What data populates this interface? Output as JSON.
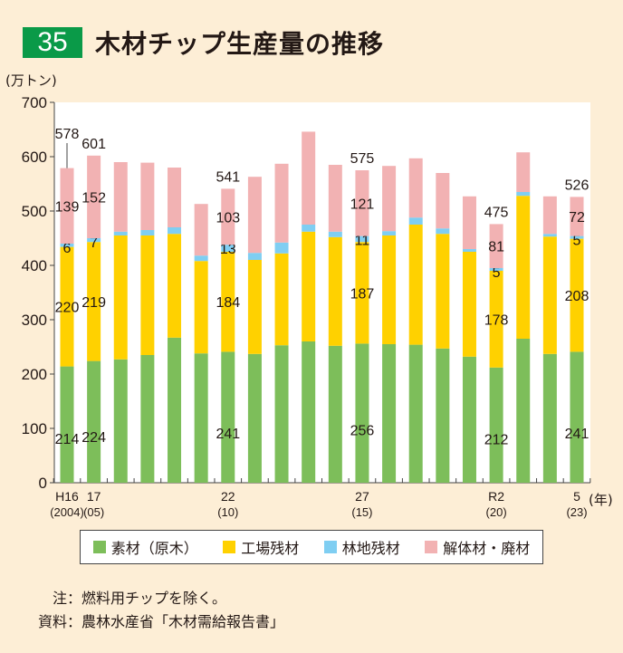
{
  "header": {
    "badge": "35",
    "title": "木材チップ生産量の推移"
  },
  "colors": {
    "green": "#7dbe5a",
    "yellow": "#ffd100",
    "blue": "#7fcef2",
    "pink": "#f2b2b3",
    "badge": "#0a9a48",
    "background": "#fdeed6"
  },
  "chart_data": {
    "type": "bar",
    "stacked": true,
    "title": "木材チップ生産量の推移",
    "ylabel": "(万トン)",
    "xlabel": "(年)",
    "ylim": [
      0,
      700
    ],
    "yticks": [
      0,
      100,
      200,
      300,
      400,
      500,
      600,
      700
    ],
    "grid": false,
    "legend_position": "bottom",
    "categories": [
      "2004",
      "2005",
      "2006",
      "2007",
      "2008",
      "2009",
      "2010",
      "2011",
      "2012",
      "2013",
      "2014",
      "2015",
      "2016",
      "2017",
      "2018",
      "2019",
      "2020",
      "2021",
      "2022",
      "2023"
    ],
    "x_tick_labels": [
      {
        "index": 0,
        "line1": "H16",
        "line2": "(2004)"
      },
      {
        "index": 1,
        "line1": "17",
        "line2": "(05)"
      },
      {
        "index": 6,
        "line1": "22",
        "line2": "(10)"
      },
      {
        "index": 11,
        "line1": "27",
        "line2": "(15)"
      },
      {
        "index": 16,
        "line1": "R2",
        "line2": "(20)"
      },
      {
        "index": 19,
        "line1": "5",
        "line2": "(23)"
      }
    ],
    "series": [
      {
        "name": "素材(原木)",
        "color": "#7dbe5a",
        "values": [
          214,
          224,
          227,
          235,
          267,
          238,
          241,
          237,
          253,
          260,
          252,
          256,
          255,
          254,
          247,
          232,
          212,
          265,
          237,
          241
        ]
      },
      {
        "name": "工場残材",
        "color": "#ffd100",
        "values": [
          220,
          219,
          228,
          220,
          191,
          170,
          184,
          173,
          169,
          202,
          200,
          187,
          200,
          221,
          211,
          193,
          178,
          263,
          216,
          208
        ]
      },
      {
        "name": "林地残材",
        "color": "#7fcef2",
        "values": [
          6,
          7,
          7,
          10,
          12,
          10,
          13,
          13,
          20,
          13,
          10,
          11,
          8,
          13,
          10,
          5,
          5,
          7,
          5,
          5
        ]
      },
      {
        "name": "解体材・廃材",
        "color": "#f2b2b3",
        "values": [
          139,
          152,
          128,
          124,
          110,
          95,
          103,
          140,
          145,
          171,
          123,
          121,
          120,
          109,
          102,
          97,
          81,
          73,
          69,
          72
        ]
      }
    ],
    "labeled_totals": [
      {
        "index": 0,
        "total": "578"
      },
      {
        "index": 1,
        "total": "601"
      },
      {
        "index": 6,
        "total": "541"
      },
      {
        "index": 11,
        "total": "575"
      },
      {
        "index": 16,
        "total": "475"
      },
      {
        "index": 19,
        "total": "526"
      }
    ],
    "labeled_indices": [
      0,
      1,
      6,
      11,
      16,
      19
    ]
  },
  "legend": [
    {
      "label": "素材（原木）",
      "color": "#7dbe5a"
    },
    {
      "label": "工場残材",
      "color": "#ffd100"
    },
    {
      "label": "林地残材",
      "color": "#7fcef2"
    },
    {
      "label": "解体材・廃材",
      "color": "#f2b2b3"
    }
  ],
  "notes": [
    {
      "key": "注：",
      "text": "燃料用チップを除く。"
    },
    {
      "key": "資料：",
      "text": "農林水産省「木材需給報告書」"
    }
  ]
}
